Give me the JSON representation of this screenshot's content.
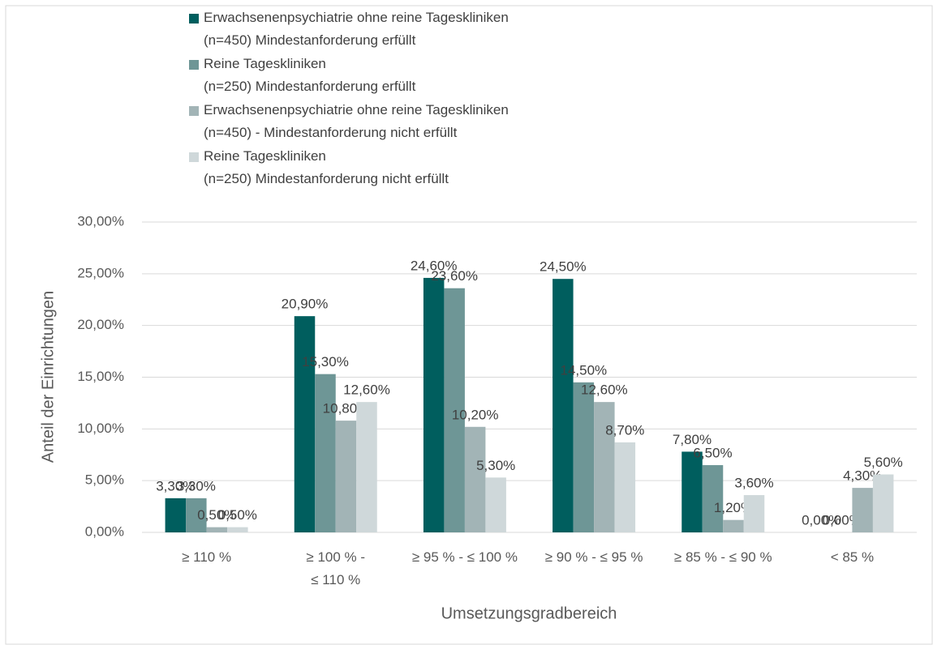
{
  "chart_data": {
    "type": "bar",
    "categories": [
      "≥ 110 %",
      "≥ 100 % -\n≤ 110 %",
      "≥ 95 % - ≤ 100 %",
      "≥ 90 % - ≤ 95 %",
      "≥ 85 % - ≤ 90 %",
      "< 85 %"
    ],
    "series": [
      {
        "name": "Erwachsenenpsychiatrie ohne reine Tageskliniken\n(n=450) Mindestanforderung erfüllt",
        "color": "#005e5e",
        "values": [
          3.3,
          20.9,
          24.6,
          24.5,
          7.8,
          0
        ],
        "value_labels": [
          "3,30%",
          "20,90%",
          "24,60%",
          "24,50%",
          "7,80%",
          "0,00%"
        ]
      },
      {
        "name": "Reine Tageskliniken\n(n=250) Mindestanforderung erfüllt",
        "color": "#6e9696",
        "values": [
          3.3,
          15.3,
          23.6,
          14.5,
          6.5,
          0
        ],
        "value_labels": [
          "3,30%",
          "15,30%",
          "23,60%",
          "14,50%",
          "6,50%",
          "0,00%"
        ]
      },
      {
        "name": "Erwachsenenpsychiatrie ohne reine Tageskliniken\n(n=450) - Mindestanforderung nicht erfüllt",
        "color": "#a2b4b6",
        "values": [
          0.5,
          10.8,
          10.2,
          12.6,
          1.2,
          4.3
        ],
        "value_labels": [
          "0,50%",
          "10,80%",
          "10,20%",
          "12,60%",
          "1,20%",
          "4,30%"
        ]
      },
      {
        "name": "Reine Tageskliniken\n(n=250) Mindestanforderung nicht erfüllt",
        "color": "#cfd8da",
        "values": [
          0.5,
          12.6,
          5.3,
          8.7,
          3.6,
          5.6
        ],
        "value_labels": [
          "0,50%",
          "12,60%",
          "5,30%",
          "8,70%",
          "3,60%",
          "5,60%"
        ]
      }
    ],
    "x_label": "Umsetzungsgradbereich",
    "y_label": "Anteil der Einrichtungen",
    "ylim": [
      0,
      30
    ],
    "yticks": [
      {
        "value": 0,
        "label": "0,00%"
      },
      {
        "value": 5,
        "label": "5,00%"
      },
      {
        "value": 10,
        "label": "10,00%"
      },
      {
        "value": 15,
        "label": "15,00%"
      },
      {
        "value": 20,
        "label": "20,00%"
      },
      {
        "value": 25,
        "label": "25,00%"
      },
      {
        "value": 30,
        "label": "30,00%"
      }
    ],
    "grid": true,
    "legend": "top"
  }
}
